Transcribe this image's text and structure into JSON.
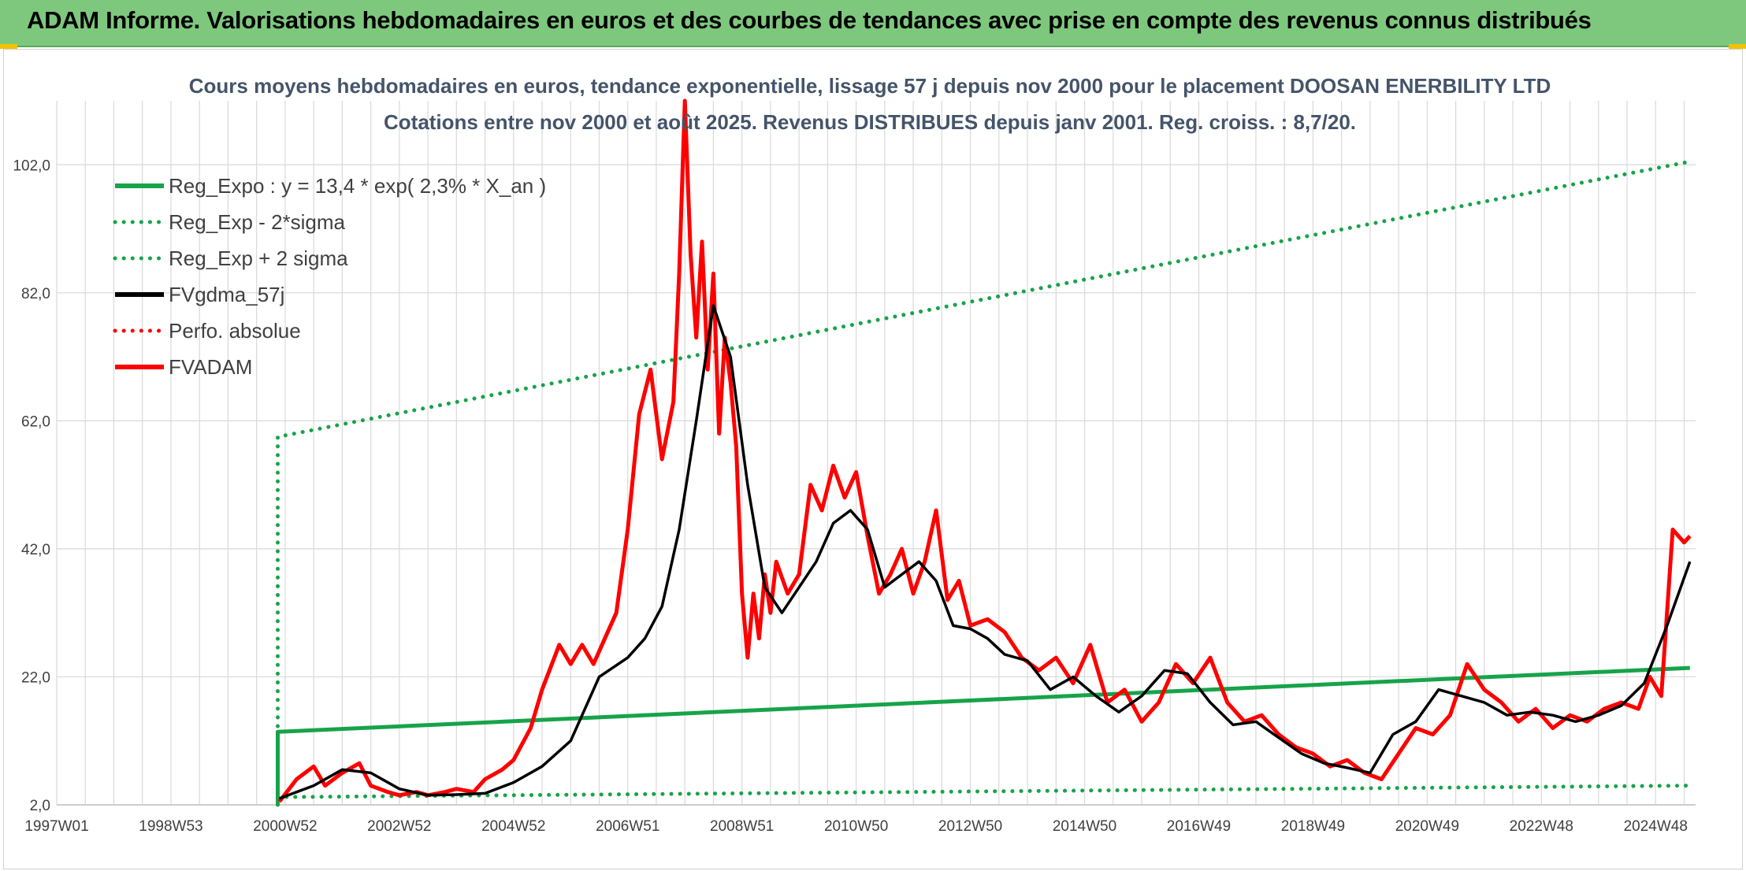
{
  "banner": {
    "title": "ADAM Informe. Valorisations hebdomadaires en euros et des courbes de tendances avec prise en compte des revenus connus distribués"
  },
  "colors": {
    "banner_bg": "#7ec87e",
    "reg_expo": "#17a34a",
    "fvgdma": "#000000",
    "fvadam": "#ff0000",
    "grid": "#d9d9d9"
  },
  "chart_data": {
    "type": "line",
    "title_lines": [
      "Cours moyens hebdomadaires en euros, tendance exponentielle, lissage 57 j depuis nov 2000 pour le placement DOOSAN ENERBILITY LTD",
      "Cotations entre nov 2000 et août 2025. Revenus DISTRIBUES depuis janv 2001. Reg. croiss. : 8,7/20."
    ],
    "x_tick_labels": [
      "1997W01",
      "1998W53",
      "2000W52",
      "2002W52",
      "2004W52",
      "2006W51",
      "2008W51",
      "2010W50",
      "2012W50",
      "2014W50",
      "2016W49",
      "2018W49",
      "2020W49",
      "2022W48",
      "2024W48"
    ],
    "x_tick_years": [
      1997.0,
      1999.0,
      2001.0,
      2003.0,
      2005.0,
      2007.0,
      2009.0,
      2011.0,
      2013.0,
      2015.0,
      2017.0,
      2019.0,
      2021.0,
      2023.0,
      2025.0
    ],
    "xlim": [
      1997.0,
      2025.7
    ],
    "y_tick_labels": [
      "2,0",
      "22,0",
      "42,0",
      "62,0",
      "82,0",
      "102,0"
    ],
    "y_ticks": [
      2,
      22,
      42,
      62,
      82,
      102
    ],
    "ylim": [
      2,
      112
    ],
    "grid": true,
    "legend_position": "top-left",
    "series": [
      {
        "name": "Reg_Expo : y = 13,4 * exp( 2,3% *  X_an )",
        "style": "solid",
        "color": "#17a34a",
        "x": [
          2000.87,
          2000.87,
          2025.6
        ],
        "y": [
          2.0,
          13.4,
          23.4
        ]
      },
      {
        "name": "Reg_Exp - 2*sigma",
        "style": "dotted",
        "color": "#17a34a",
        "x": [
          2000.87,
          2025.6
        ],
        "y": [
          3.2,
          5.0
        ]
      },
      {
        "name": "Reg_Exp + 2 sigma",
        "style": "dotted",
        "color": "#17a34a",
        "x": [
          2000.87,
          2000.87,
          2025.6
        ],
        "y": [
          2.0,
          59.5,
          102.5
        ]
      },
      {
        "name": "FVgdma_57j",
        "style": "solid",
        "color": "#000000",
        "x": [
          2000.9,
          2001.5,
          2002.0,
          2002.5,
          2003.0,
          2003.5,
          2004.0,
          2004.5,
          2005.0,
          2005.5,
          2006.0,
          2006.5,
          2007.0,
          2007.3,
          2007.6,
          2007.9,
          2008.2,
          2008.5,
          2008.8,
          2009.1,
          2009.4,
          2009.7,
          2010.0,
          2010.3,
          2010.6,
          2010.9,
          2011.2,
          2011.5,
          2011.8,
          2012.1,
          2012.4,
          2012.7,
          2013.0,
          2013.3,
          2013.6,
          2014.0,
          2014.4,
          2014.8,
          2015.2,
          2015.6,
          2016.0,
          2016.4,
          2016.8,
          2017.2,
          2017.6,
          2018.0,
          2018.4,
          2018.8,
          2019.2,
          2019.6,
          2020.0,
          2020.4,
          2020.8,
          2021.2,
          2021.6,
          2022.0,
          2022.4,
          2022.8,
          2023.2,
          2023.6,
          2024.0,
          2024.4,
          2024.8,
          2025.2,
          2025.6
        ],
        "y": [
          3.0,
          5.0,
          7.5,
          7.0,
          4.5,
          3.5,
          3.6,
          3.8,
          5.5,
          8.0,
          12.0,
          22.0,
          25.0,
          28.0,
          33.0,
          45.0,
          62.0,
          80.0,
          72.0,
          52.0,
          36.0,
          32.0,
          36.0,
          40.0,
          46.0,
          48.0,
          45.0,
          36.0,
          38.0,
          40.0,
          37.0,
          30.0,
          29.5,
          28.0,
          25.5,
          24.5,
          20.0,
          22.0,
          19.0,
          16.5,
          19.0,
          23.0,
          22.5,
          18.0,
          14.5,
          15.0,
          12.5,
          10.0,
          8.5,
          7.8,
          7.0,
          13.0,
          15.0,
          20.0,
          19.0,
          18.0,
          16.0,
          16.5,
          16.0,
          15.0,
          16.0,
          17.5,
          21.0,
          30.0,
          40.0
        ]
      },
      {
        "name": "Perfo. absolue",
        "style": "dotted",
        "color": "#ff0000",
        "x": [],
        "y": []
      },
      {
        "name": "FVADAM",
        "style": "solid",
        "color": "#ff0000",
        "x": [
          2000.9,
          2001.2,
          2001.5,
          2001.7,
          2002.0,
          2002.3,
          2002.5,
          2002.8,
          2003.0,
          2003.3,
          2003.5,
          2003.8,
          2004.0,
          2004.3,
          2004.5,
          2004.8,
          2005.0,
          2005.3,
          2005.5,
          2005.8,
          2006.0,
          2006.2,
          2006.4,
          2006.6,
          2006.8,
          2007.0,
          2007.2,
          2007.4,
          2007.6,
          2007.8,
          2007.9,
          2008.0,
          2008.1,
          2008.2,
          2008.3,
          2008.4,
          2008.5,
          2008.6,
          2008.7,
          2008.8,
          2008.9,
          2009.0,
          2009.1,
          2009.2,
          2009.3,
          2009.4,
          2009.5,
          2009.6,
          2009.8,
          2010.0,
          2010.2,
          2010.4,
          2010.6,
          2010.8,
          2011.0,
          2011.2,
          2011.4,
          2011.6,
          2011.8,
          2012.0,
          2012.2,
          2012.4,
          2012.6,
          2012.8,
          2013.0,
          2013.3,
          2013.6,
          2013.9,
          2014.2,
          2014.5,
          2014.8,
          2015.1,
          2015.4,
          2015.7,
          2016.0,
          2016.3,
          2016.6,
          2016.9,
          2017.2,
          2017.5,
          2017.8,
          2018.1,
          2018.4,
          2018.7,
          2019.0,
          2019.3,
          2019.6,
          2019.9,
          2020.2,
          2020.5,
          2020.8,
          2021.1,
          2021.4,
          2021.7,
          2022.0,
          2022.3,
          2022.6,
          2022.9,
          2023.2,
          2023.5,
          2023.8,
          2024.1,
          2024.4,
          2024.7,
          2024.9,
          2025.1,
          2025.3,
          2025.5,
          2025.6
        ],
        "y": [
          2.5,
          6.0,
          8.0,
          5.0,
          7.0,
          8.5,
          5.0,
          4.0,
          3.5,
          4.0,
          3.5,
          4.0,
          4.5,
          4.0,
          6.0,
          7.5,
          9.0,
          14.0,
          20.0,
          27.0,
          24.0,
          27.0,
          24.0,
          28.0,
          32.0,
          45.0,
          63.0,
          70.0,
          56.0,
          65.0,
          85.0,
          112.0,
          88.0,
          75.0,
          90.0,
          70.0,
          85.0,
          60.0,
          75.0,
          68.0,
          58.0,
          35.0,
          25.0,
          35.0,
          28.0,
          38.0,
          32.0,
          40.0,
          35.0,
          38.0,
          52.0,
          48.0,
          55.0,
          50.0,
          54.0,
          44.0,
          35.0,
          38.0,
          42.0,
          35.0,
          40.0,
          48.0,
          34.0,
          37.0,
          30.0,
          31.0,
          29.0,
          25.0,
          23.0,
          25.0,
          21.0,
          27.0,
          18.0,
          20.0,
          15.0,
          18.0,
          24.0,
          21.0,
          25.0,
          18.0,
          15.0,
          16.0,
          13.0,
          11.0,
          10.0,
          8.0,
          9.0,
          7.0,
          6.0,
          10.0,
          14.0,
          13.0,
          16.0,
          24.0,
          20.0,
          18.0,
          15.0,
          17.0,
          14.0,
          16.0,
          15.0,
          17.0,
          18.0,
          17.0,
          22.0,
          19.0,
          45.0,
          43.0,
          44.0
        ]
      }
    ]
  }
}
